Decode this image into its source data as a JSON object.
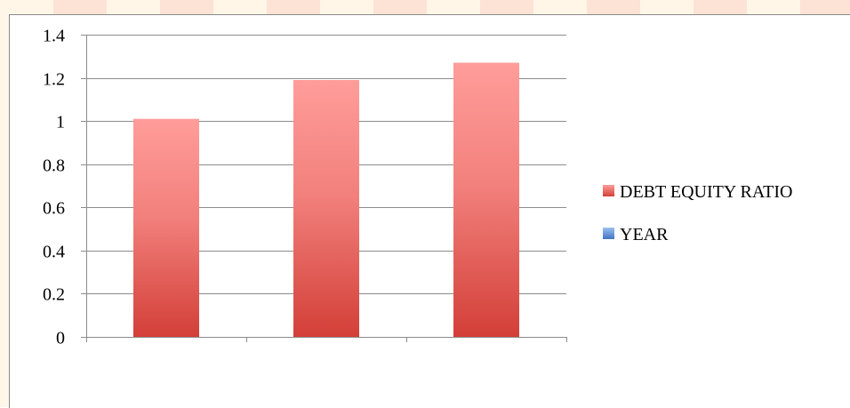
{
  "chart_data": {
    "type": "bar",
    "categories": [
      "",
      "",
      ""
    ],
    "series": [
      {
        "name": "DEBT EQUITY RATIO",
        "values": [
          1.01,
          1.19,
          1.27
        ],
        "color": "#e8524e"
      },
      {
        "name": "YEAR",
        "values": [
          null,
          null,
          null
        ],
        "color": "#4f81bd"
      }
    ],
    "yticks": [
      "0",
      "0.2",
      "0.4",
      "0.6",
      "0.8",
      "1",
      "1.2",
      "1.4"
    ],
    "ylim": [
      0,
      1.4
    ],
    "grid": true,
    "legend_position": "right"
  }
}
